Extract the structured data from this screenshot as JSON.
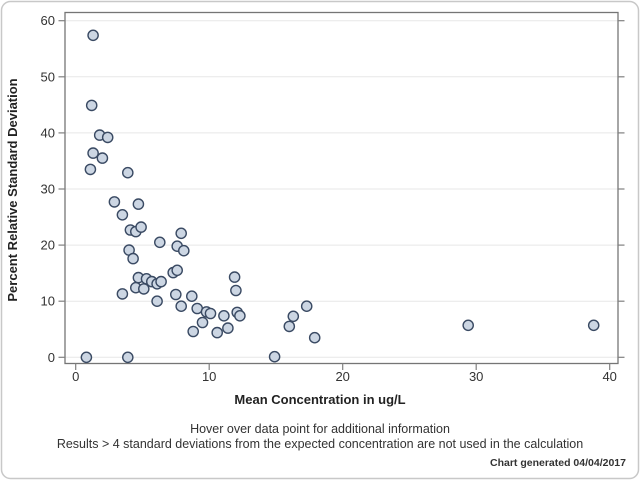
{
  "chart_data": {
    "type": "scatter",
    "title": "",
    "xlabel": "Mean Concentration in ug/L",
    "ylabel": "Percent Relative Standard Deviation",
    "xlim": [
      0,
      40
    ],
    "ylim": [
      0,
      60
    ],
    "xticks": [
      "0",
      "10",
      "20",
      "30",
      "40"
    ],
    "xtick_values": [
      0,
      10,
      20,
      30,
      40
    ],
    "yticks": [
      "0",
      "10",
      "20",
      "30",
      "40",
      "50",
      "60"
    ],
    "ytick_values": [
      0,
      10,
      20,
      30,
      40,
      50,
      60
    ],
    "grid": "horizontal-only",
    "legend": "none",
    "marker": {
      "shape": "circle",
      "fill": "#ccd6e3",
      "stroke": "#3a4a63"
    },
    "points": [
      [
        1.3,
        57.4
      ],
      [
        1.2,
        44.9
      ],
      [
        1.8,
        39.6
      ],
      [
        2.4,
        39.2
      ],
      [
        1.3,
        36.4
      ],
      [
        2.0,
        35.5
      ],
      [
        1.1,
        33.5
      ],
      [
        3.9,
        32.9
      ],
      [
        2.9,
        27.7
      ],
      [
        4.7,
        27.3
      ],
      [
        3.5,
        25.4
      ],
      [
        4.1,
        22.7
      ],
      [
        4.5,
        22.4
      ],
      [
        4.9,
        23.2
      ],
      [
        7.9,
        22.1
      ],
      [
        6.3,
        20.5
      ],
      [
        7.6,
        19.8
      ],
      [
        8.1,
        19.0
      ],
      [
        4.0,
        19.1
      ],
      [
        4.3,
        17.6
      ],
      [
        7.3,
        15.1
      ],
      [
        7.6,
        15.5
      ],
      [
        4.7,
        14.2
      ],
      [
        5.3,
        14.0
      ],
      [
        5.7,
        13.5
      ],
      [
        6.1,
        13.1
      ],
      [
        6.4,
        13.5
      ],
      [
        4.5,
        12.4
      ],
      [
        5.1,
        12.2
      ],
      [
        3.5,
        11.3
      ],
      [
        6.1,
        10.0
      ],
      [
        7.5,
        11.2
      ],
      [
        8.7,
        10.9
      ],
      [
        7.9,
        9.1
      ],
      [
        9.1,
        8.7
      ],
      [
        9.8,
        8.1
      ],
      [
        10.1,
        7.8
      ],
      [
        11.1,
        7.4
      ],
      [
        12.1,
        8.0
      ],
      [
        12.3,
        7.4
      ],
      [
        9.5,
        6.2
      ],
      [
        11.4,
        5.2
      ],
      [
        10.6,
        4.4
      ],
      [
        8.8,
        4.6
      ],
      [
        11.9,
        14.3
      ],
      [
        12.0,
        11.9
      ],
      [
        16.3,
        7.3
      ],
      [
        17.3,
        9.1
      ],
      [
        16.0,
        5.5
      ],
      [
        17.9,
        3.5
      ],
      [
        14.9,
        0.1
      ],
      [
        0.8,
        0.0
      ],
      [
        3.9,
        0.0
      ],
      [
        29.4,
        5.7
      ],
      [
        38.8,
        5.7
      ]
    ]
  },
  "colors": {
    "marker_fill": "#ccd6e3",
    "marker_stroke": "#3a4a63",
    "gridline": "#e7e7e7",
    "frame": "#757575",
    "tick": "#808080",
    "outer_border": "#c8c8c8",
    "background": "#ffffff"
  },
  "footer": {
    "note1": "Hover over data point for additional information",
    "note2": "Results > 4 standard deviations from the expected concentration are not used in the calculation",
    "generated": "Chart generated 04/04/2017"
  }
}
